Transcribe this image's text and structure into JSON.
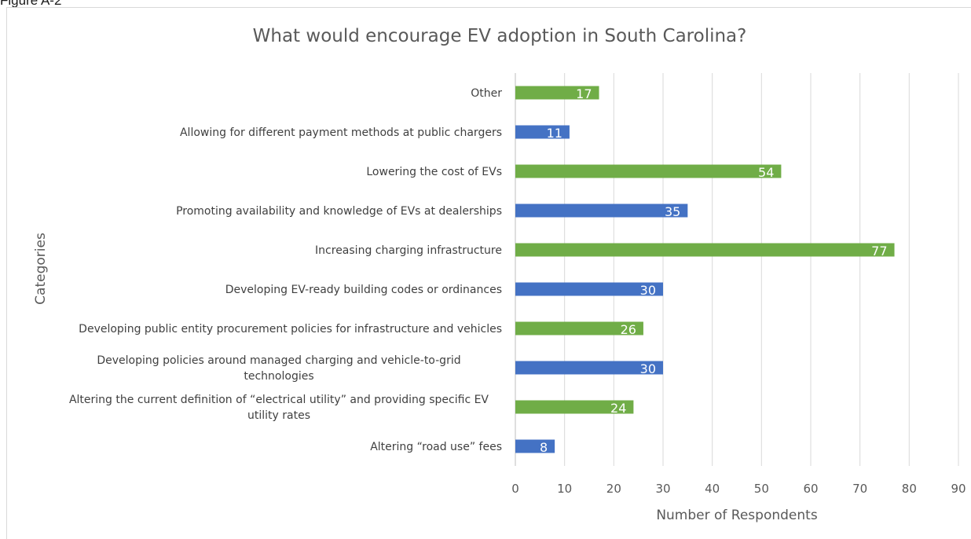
{
  "figure_label": "Figure A-2",
  "chart_data": {
    "type": "bar",
    "orientation": "horizontal",
    "title": "What would encourage EV adoption in South Carolina?",
    "xlabel": "Number of Respondents",
    "ylabel": "Categories",
    "xlim": [
      0,
      90
    ],
    "x_ticks": [
      0,
      10,
      20,
      30,
      40,
      50,
      60,
      70,
      80,
      90
    ],
    "grid": "vertical",
    "data_labels": "inside-end",
    "bar_colors": [
      "#70ad47",
      "#4472c4"
    ],
    "categories": [
      "Other",
      "Allowing for different payment methods at public chargers",
      "Lowering the cost of EVs",
      "Promoting availability and knowledge of EVs at dealerships",
      "Increasing charging infrastructure",
      "Developing EV-ready building codes or ordinances",
      "Developing public entity procurement policies for infrastructure and vehicles",
      "Developing policies around managed charging and vehicle-to-grid technologies",
      "Altering the current definition of “electrical utility” and providing specific EV utility rates",
      "Altering “road use” fees"
    ],
    "category_lines": [
      [
        "Other"
      ],
      [
        "Allowing for different payment methods at public chargers"
      ],
      [
        "Lowering the cost of EVs"
      ],
      [
        "Promoting availability and knowledge of EVs at dealerships"
      ],
      [
        "Increasing charging infrastructure"
      ],
      [
        "Developing EV-ready building codes or ordinances"
      ],
      [
        "Developing public entity procurement policies for infrastructure and vehicles"
      ],
      [
        "Developing policies around managed charging and vehicle-to-grid",
        "technologies"
      ],
      [
        "Altering the current definition of “electrical utility” and providing specific EV",
        "utility rates"
      ],
      [
        "Altering “road use” fees"
      ]
    ],
    "values": [
      17,
      11,
      54,
      35,
      77,
      30,
      26,
      30,
      24,
      8
    ]
  }
}
